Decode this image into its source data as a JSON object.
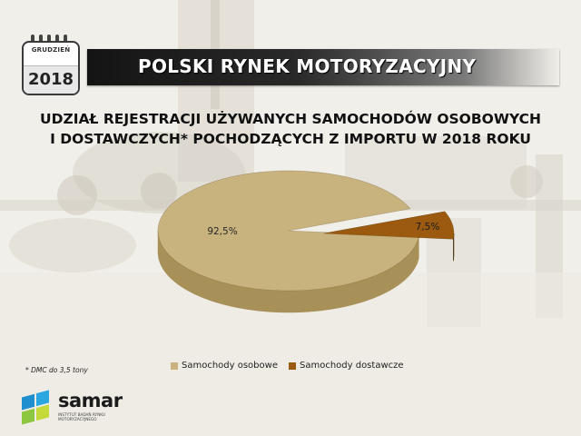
{
  "header": {
    "calendar_month": "GRUDZIEŃ",
    "calendar_year": "2018",
    "banner_title": "POLSKI RYNEK MOTORYZACYJNY"
  },
  "chart_data": {
    "type": "pie",
    "title_line1": "UDZIAŁ REJESTRACJI UŻYWANYCH SAMOCHODÓW OSOBOWYCH",
    "title_line2": "I DOSTAWCZYCH* POCHODZĄCYCH Z IMPORTU W 2018 ROKU",
    "categories": [
      "Samochody osobowe",
      "Samochody dostawcze"
    ],
    "values": [
      92.5,
      7.5
    ],
    "data_labels": [
      "92,5%",
      "7,5%"
    ],
    "colors": [
      "#c8b27e",
      "#9b5a10"
    ],
    "side_colors": [
      "#a89158",
      "#4a2e0e"
    ],
    "legend_position": "bottom",
    "style": "3d-exploded"
  },
  "footnote": "* DMC do 3,5 tony",
  "logo": {
    "name": "samar",
    "subtitle": "INSTYTUT BADAŃ RYNKU MOTORYZACYJNEGO"
  }
}
